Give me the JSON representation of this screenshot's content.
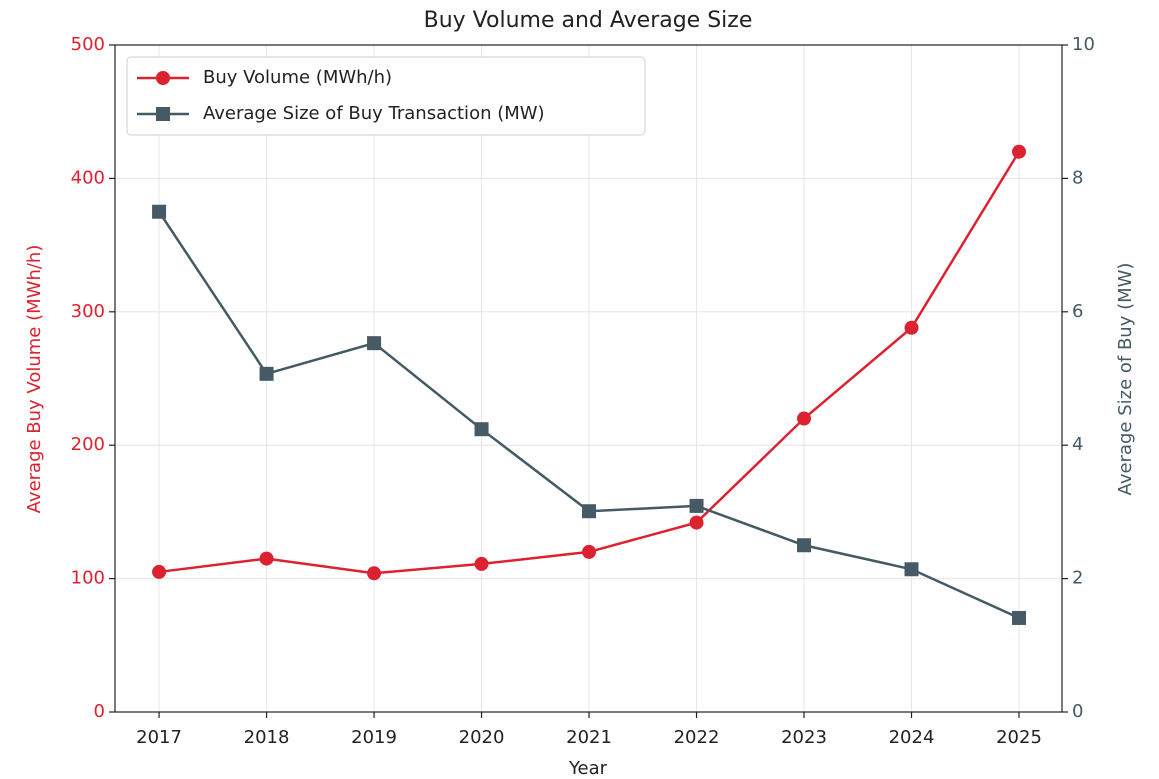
{
  "chart_data": {
    "type": "line",
    "title": "Buy Volume and Average Size",
    "xlabel": "Year",
    "ylabel": "Average Buy Volume (MWh/h)",
    "y2label": "Average Size of Buy (MW)",
    "x": [
      2017,
      2018,
      2019,
      2020,
      2021,
      2022,
      2023,
      2024,
      2025
    ],
    "xlim": [
      2016.59,
      2025.4
    ],
    "xticks": [
      2017,
      2018,
      2019,
      2020,
      2021,
      2022,
      2023,
      2024,
      2025
    ],
    "ylim": [
      0,
      500
    ],
    "yticks": [
      0,
      100,
      200,
      300,
      400,
      500
    ],
    "y2lim": [
      0,
      10
    ],
    "y2ticks": [
      0,
      2,
      4,
      6,
      8,
      10
    ],
    "grid": true,
    "legend": "upper left",
    "series": [
      {
        "name": "Buy Volume (MWh/h)",
        "color": "#dc2230",
        "marker": "circle",
        "axis": "y",
        "values": [
          105,
          115,
          104,
          111,
          120,
          142,
          220,
          288,
          420
        ]
      },
      {
        "name": "Average Size of Buy Transaction (MW)",
        "color": "#455a64",
        "marker": "square",
        "axis": "y2",
        "values": [
          7.5,
          5.07,
          5.53,
          4.24,
          3.01,
          3.09,
          2.5,
          2.14,
          1.41
        ]
      }
    ]
  }
}
